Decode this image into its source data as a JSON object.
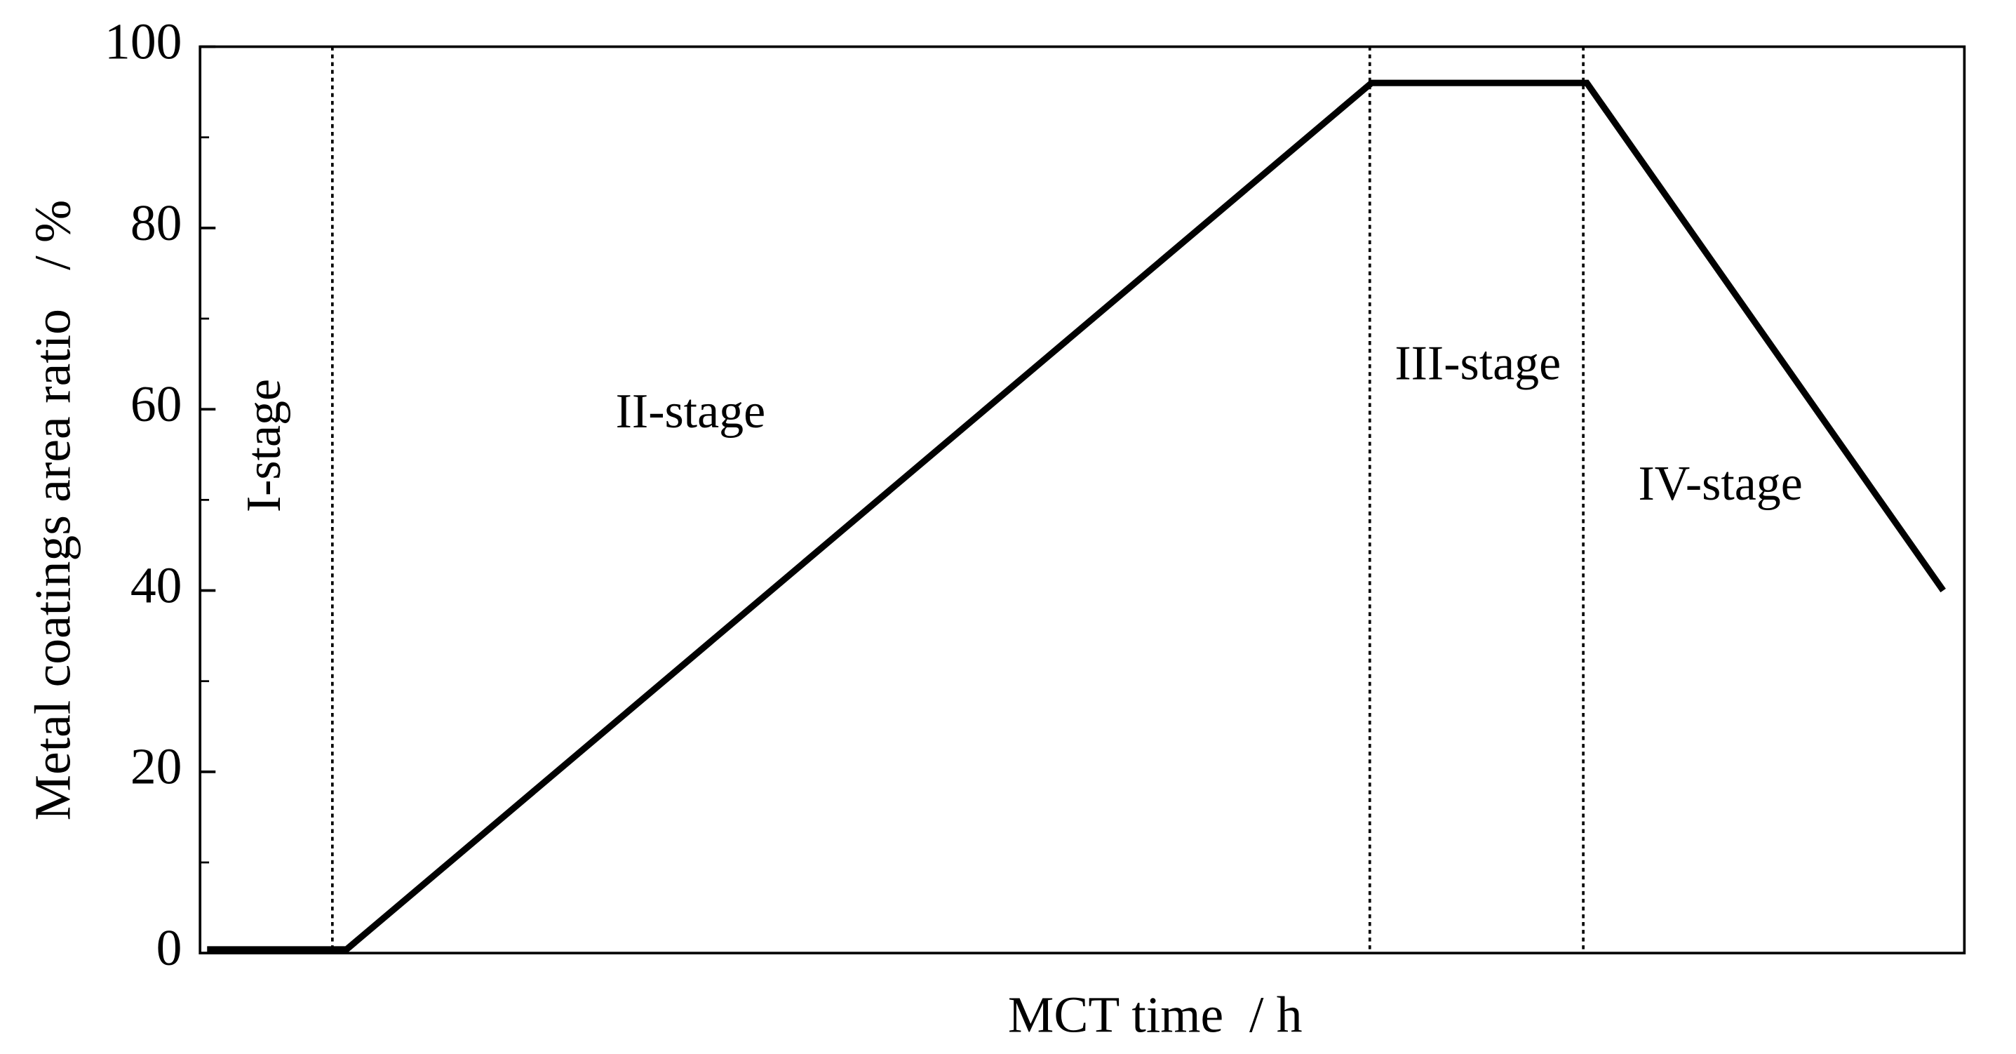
{
  "chart_data": {
    "type": "line",
    "x_label": "MCT time  / h",
    "y_label": "Metal coatings area ratio   / %",
    "x": [
      0.4,
      8.3,
      66.4,
      78.6,
      98.8
    ],
    "series": [
      {
        "color": "#000000",
        "values": [
          0.4,
          0.4,
          96,
          96,
          40
        ]
      }
    ],
    "xlim": [
      0,
      100
    ],
    "ylim": [
      0,
      100
    ],
    "yticks": [
      0,
      20,
      40,
      60,
      80,
      100
    ],
    "y_minor_ticks": [
      10,
      30,
      50,
      70,
      90
    ],
    "stage_boundaries": [
      7.5,
      66.3,
      78.4
    ],
    "annotations": [
      "I-stage",
      "II-stage",
      "III-stage",
      "IV-stage"
    ]
  }
}
